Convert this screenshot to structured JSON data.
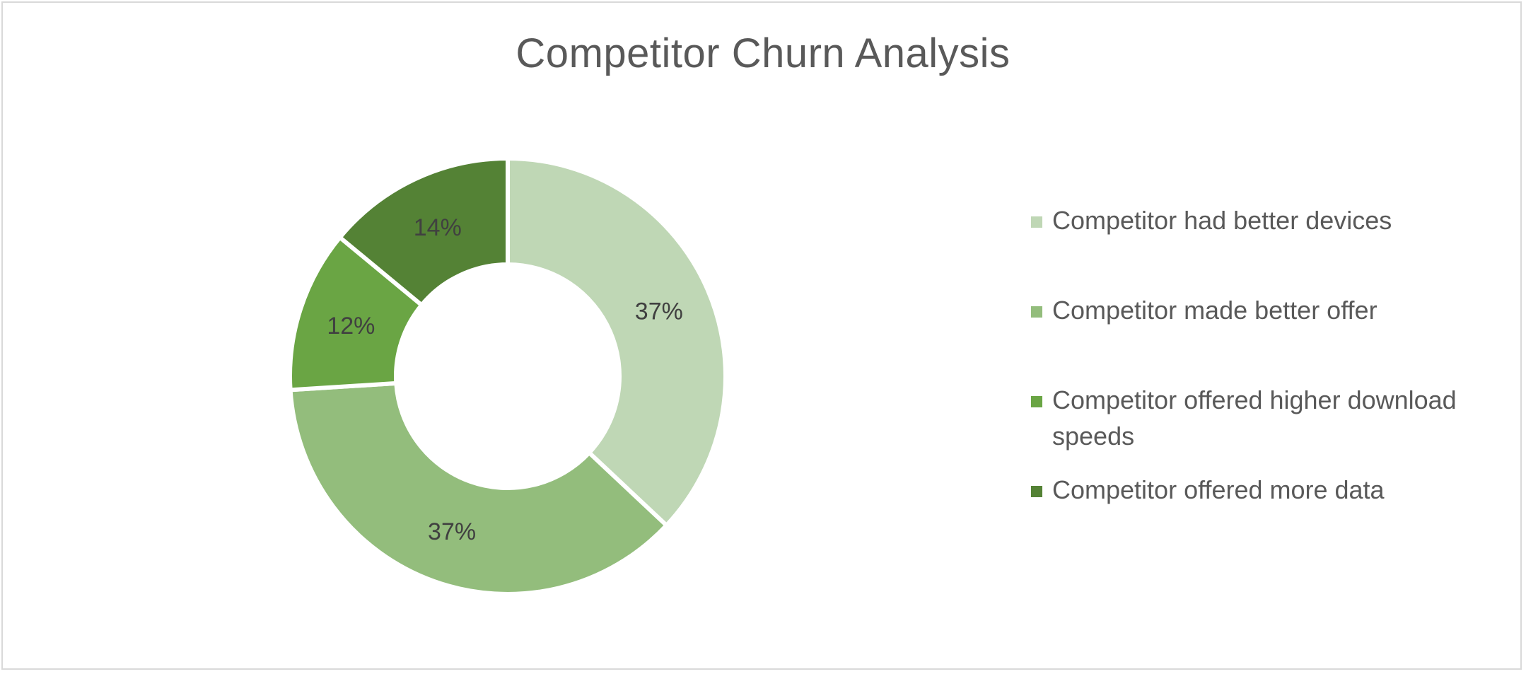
{
  "chart_data": {
    "type": "pie",
    "variant": "doughnut",
    "title": "Competitor Churn Analysis",
    "categories": [
      "Competitor had better devices",
      "Competitor made better offer",
      "Competitor offered higher download speeds",
      "Competitor offered more data"
    ],
    "values": [
      37,
      37,
      12,
      14
    ],
    "data_labels": [
      "37%",
      "37%",
      "12%",
      "14%"
    ],
    "colors": [
      "#bfd7b5",
      "#93bd7c",
      "#6aa544",
      "#548235"
    ],
    "legend": "right"
  }
}
